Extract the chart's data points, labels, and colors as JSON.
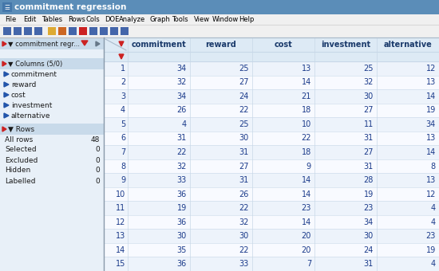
{
  "title": "commitment regression",
  "columns": [
    "commitment",
    "reward",
    "cost",
    "investment",
    "alternative"
  ],
  "rows": [
    [
      34,
      25,
      13,
      25,
      12
    ],
    [
      32,
      27,
      14,
      32,
      13
    ],
    [
      34,
      24,
      21,
      30,
      14
    ],
    [
      26,
      22,
      18,
      27,
      19
    ],
    [
      4,
      25,
      10,
      11,
      34
    ],
    [
      31,
      30,
      22,
      31,
      13
    ],
    [
      22,
      31,
      18,
      27,
      14
    ],
    [
      32,
      27,
      9,
      31,
      8
    ],
    [
      33,
      31,
      14,
      28,
      13
    ],
    [
      36,
      26,
      14,
      19,
      12
    ],
    [
      19,
      22,
      23,
      23,
      4
    ],
    [
      36,
      32,
      14,
      34,
      4
    ],
    [
      30,
      30,
      20,
      30,
      23
    ],
    [
      35,
      22,
      20,
      24,
      19
    ],
    [
      36,
      33,
      7,
      31,
      4
    ]
  ],
  "sidebar_items": {
    "columns_header": "Columns (5/0)",
    "columns_list": [
      "commitment",
      "reward",
      "cost",
      "investment",
      "alternative"
    ],
    "rows_header": "Rows",
    "rows_data": [
      [
        "All rows",
        48
      ],
      [
        "Selected",
        0
      ],
      [
        "Excluded",
        0
      ],
      [
        "Hidden",
        0
      ],
      [
        "Labelled",
        0
      ]
    ]
  },
  "menu_items": [
    "File",
    "Edit",
    "Tables",
    "Rows",
    "Cols",
    "DOE",
    "Analyze",
    "Graph",
    "Tools",
    "View",
    "Window",
    "Help"
  ],
  "title_bg": "#5b8db8",
  "title_text_color": "#ffffff",
  "menu_bg": "#f0f0f0",
  "toolbar_bg": "#f0f0f0",
  "sidebar_bg": "#e8f0f8",
  "sidebar_section_bg": "#c8daea",
  "sidebar_text_color": "#1a1a1a",
  "table_header_bg": "#ddeaf5",
  "table_row_even_bg": "#edf3fb",
  "table_row_odd_bg": "#f8faff",
  "table_header_text": "#1a3a6b",
  "table_data_text": "#1a3a8a",
  "red_icon_color": "#cc2222",
  "blue_icon_color": "#2255aa",
  "grid_color": "#c8d8e8",
  "sidebar_border_color": "#8899aa"
}
